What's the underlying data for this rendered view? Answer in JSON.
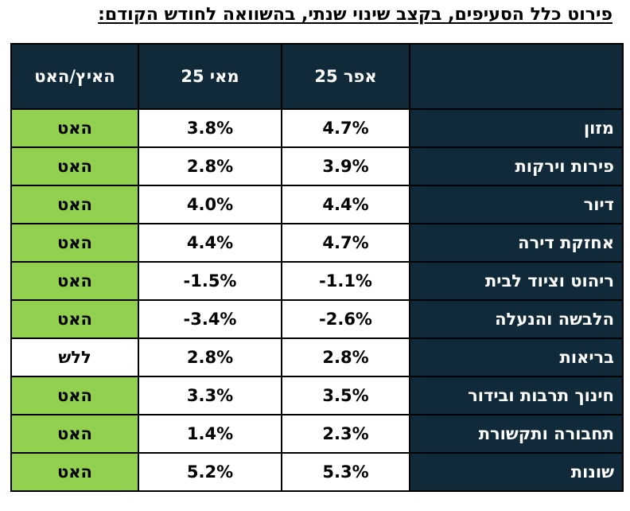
{
  "title": "פירוט כלל הסעיפים, בקצב שינוי שנתי, בהשוואה לחודש הקודם:",
  "table": {
    "headers": {
      "category": "",
      "apr": "אפר 25",
      "may": "מאי 25",
      "status": "האיץ/האט"
    },
    "rows": [
      {
        "category": "מזון",
        "apr": "4.7%",
        "may": "3.8%",
        "status": "האט",
        "status_color": "#92d050"
      },
      {
        "category": "פירות וירקות",
        "apr": "3.9%",
        "may": "2.8%",
        "status": "האט",
        "status_color": "#92d050"
      },
      {
        "category": "דיור",
        "apr": "4.4%",
        "may": "4.0%",
        "status": "האט",
        "status_color": "#92d050"
      },
      {
        "category": "אחזקת דירה",
        "apr": "4.7%",
        "may": "4.4%",
        "status": "האט",
        "status_color": "#92d050"
      },
      {
        "category": "ריהוט וציוד לבית",
        "apr": "-1.1%",
        "may": "-1.5%",
        "status": "האט",
        "status_color": "#92d050"
      },
      {
        "category": "הלבשה והנעלה",
        "apr": "-2.6%",
        "may": "-3.4%",
        "status": "האט",
        "status_color": "#92d050"
      },
      {
        "category": "בריאות",
        "apr": "2.8%",
        "may": "2.8%",
        "status": "ללש",
        "status_color": "#ffffff"
      },
      {
        "category": "חינוך תרבות ובידור",
        "apr": "3.5%",
        "may": "3.3%",
        "status": "האט",
        "status_color": "#92d050"
      },
      {
        "category": "תחבורה ותקשורת",
        "apr": "2.3%",
        "may": "1.4%",
        "status": "האט",
        "status_color": "#92d050"
      },
      {
        "category": "שונות",
        "apr": "5.3%",
        "may": "5.2%",
        "status": "האט",
        "status_color": "#92d050"
      }
    ]
  },
  "colors": {
    "header_bg": "#102a3a",
    "slowed": "#92d050",
    "unchanged": "#ffffff"
  }
}
